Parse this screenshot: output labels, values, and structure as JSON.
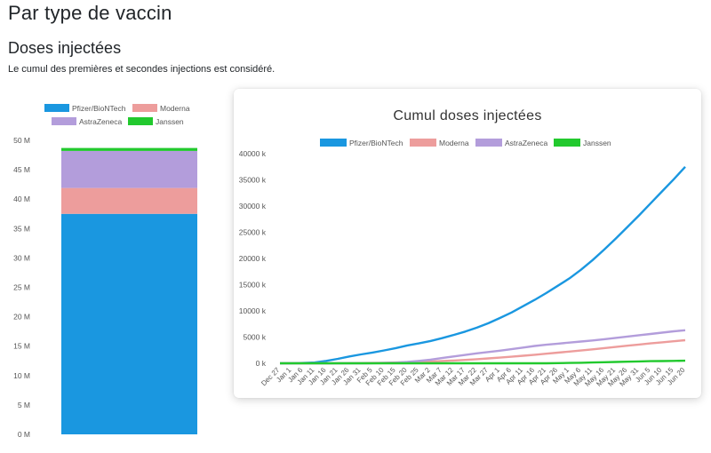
{
  "page": {
    "title": "Par type de vaccin",
    "section_title": "Doses injectées",
    "note": "Le cumul des premières et secondes injections est considéré."
  },
  "colors": {
    "Pfizer/BioNTech": "#1a97e0",
    "Moderna": "#ed9d9c",
    "AstraZeneca": "#b39ddb",
    "Janssen": "#22c92e",
    "grid": "#e6e6e6",
    "tick_text": "#555555"
  },
  "chart_data": [
    {
      "type": "bar",
      "stacked": true,
      "categories": [
        ""
      ],
      "series": [
        {
          "name": "Pfizer/BioNTech",
          "values": [
            37.5
          ]
        },
        {
          "name": "Moderna",
          "values": [
            4.4
          ]
        },
        {
          "name": "AstraZeneca",
          "values": [
            6.3
          ]
        },
        {
          "name": "Janssen",
          "values": [
            0.5
          ]
        }
      ],
      "y_ticks": [
        "0 M",
        "5 M",
        "10 M",
        "15 M",
        "20 M",
        "25 M",
        "30 M",
        "35 M",
        "40 M",
        "45 M",
        "50 M"
      ],
      "ylim": [
        0,
        50
      ],
      "unit": "M",
      "legend": "top",
      "grid": false
    },
    {
      "type": "line",
      "title": "Cumul doses injectées",
      "x": [
        "Dec 27",
        "Jan 1",
        "Jan 6",
        "Jan 11",
        "Jan 16",
        "Jan 21",
        "Jan 26",
        "Jan 31",
        "Feb 5",
        "Feb 10",
        "Feb 15",
        "Feb 20",
        "Feb 25",
        "Mar 2",
        "Mar 7",
        "Mar 12",
        "Mar 17",
        "Mar 22",
        "Mar 27",
        "Apr 1",
        "Apr 6",
        "Apr 11",
        "Apr 16",
        "Apr 21",
        "Apr 26",
        "May 1",
        "May 6",
        "May 11",
        "May 16",
        "May 21",
        "May 26",
        "May 31",
        "Jun 5",
        "Jun 10",
        "Jun 15",
        "Jun 20"
      ],
      "series": [
        {
          "name": "Pfizer/BioNTech",
          "values": [
            0,
            10,
            60,
            150,
            450,
            850,
            1300,
            1700,
            2050,
            2450,
            2900,
            3400,
            3800,
            4250,
            4800,
            5400,
            6050,
            6800,
            7650,
            8650,
            9700,
            10900,
            12100,
            13400,
            14800,
            16200,
            17850,
            19700,
            21700,
            23800,
            26000,
            28200,
            30500,
            32800,
            35100,
            37500
          ]
        },
        {
          "name": "Moderna",
          "values": [
            0,
            0,
            0,
            0,
            5,
            15,
            30,
            50,
            75,
            110,
            150,
            200,
            260,
            330,
            420,
            520,
            640,
            780,
            930,
            1090,
            1260,
            1440,
            1630,
            1830,
            2030,
            2230,
            2440,
            2660,
            2890,
            3120,
            3350,
            3580,
            3800,
            4000,
            4200,
            4400
          ]
        },
        {
          "name": "AstraZeneca",
          "values": [
            0,
            0,
            0,
            0,
            0,
            0,
            0,
            0,
            20,
            60,
            120,
            250,
            450,
            700,
            1000,
            1300,
            1600,
            1900,
            2150,
            2400,
            2700,
            3000,
            3300,
            3550,
            3750,
            3950,
            4150,
            4350,
            4600,
            4850,
            5100,
            5350,
            5600,
            5850,
            6100,
            6300
          ]
        },
        {
          "name": "Janssen",
          "values": [
            0,
            0,
            0,
            0,
            0,
            0,
            0,
            0,
            0,
            0,
            0,
            0,
            0,
            0,
            0,
            0,
            0,
            0,
            0,
            0,
            0,
            0,
            0,
            0,
            30,
            60,
            100,
            150,
            200,
            250,
            300,
            350,
            400,
            430,
            460,
            500
          ]
        }
      ],
      "y_ticks": [
        "0 k",
        "5000 k",
        "10000 k",
        "15000 k",
        "20000 k",
        "25000 k",
        "30000 k",
        "35000 k",
        "40000 k"
      ],
      "ylim": [
        0,
        40000
      ],
      "unit": "k",
      "legend": "top",
      "grid": false
    }
  ]
}
